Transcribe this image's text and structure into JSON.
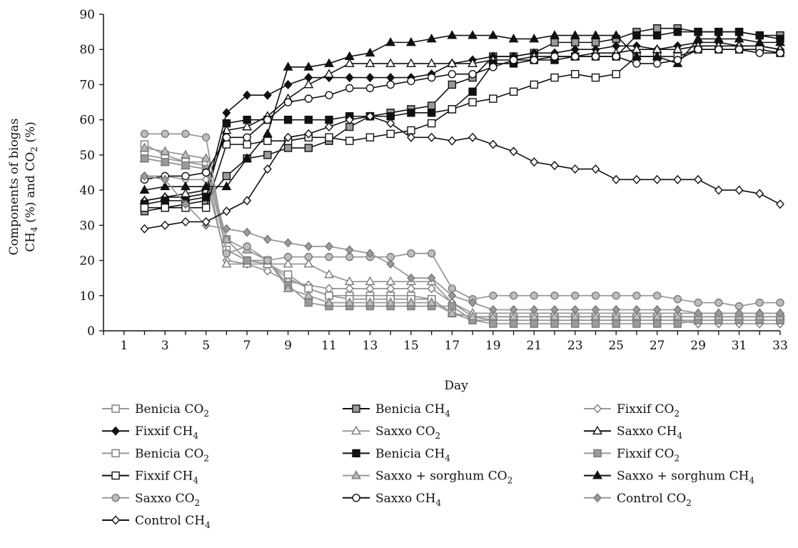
{
  "chart_data": {
    "type": "line",
    "title": "",
    "xlabel": "Day",
    "ylabel_line1": "Components of biogas",
    "ylabel_line2_parts": [
      "CH",
      "4",
      " (%)  and  CO",
      "2",
      " (%)"
    ],
    "xlim": [
      0,
      33
    ],
    "ylim": [
      0,
      90
    ],
    "xticks": [
      1,
      3,
      5,
      7,
      9,
      11,
      13,
      15,
      17,
      19,
      21,
      23,
      25,
      27,
      29,
      31,
      33
    ],
    "yticks": [
      0,
      10,
      20,
      30,
      40,
      50,
      60,
      70,
      80,
      90
    ],
    "grid": false,
    "legend_position": "bottom",
    "x": [
      2,
      3,
      4,
      5,
      6,
      7,
      8,
      9,
      10,
      11,
      12,
      13,
      14,
      15,
      16,
      17,
      18,
      19,
      20,
      21,
      22,
      23,
      24,
      25,
      26,
      27,
      28,
      29,
      30,
      31,
      32,
      33
    ],
    "series": [
      {
        "label": "Benicia",
        "sub": "CO",
        "subscript": "2",
        "color": "#9a9a9a",
        "marker": "square",
        "fill": "#ffffff",
        "values": [
          53,
          50,
          48,
          47,
          23,
          20,
          19,
          15,
          12,
          10,
          10,
          10,
          10,
          10,
          9,
          5,
          4,
          4,
          4,
          4,
          4,
          4,
          4,
          4,
          4,
          4,
          4,
          4,
          4,
          4,
          4,
          4
        ]
      },
      {
        "label": "Benicia",
        "sub": "CH",
        "subscript": "4",
        "color": "#111111",
        "marker": "square",
        "fill": "#9a9a9a",
        "values": [
          34,
          35,
          36,
          37,
          44,
          49,
          50,
          52,
          52,
          54,
          58,
          61,
          62,
          63,
          64,
          70,
          72,
          78,
          78,
          79,
          82,
          82,
          82,
          83,
          85,
          86,
          86,
          85,
          85,
          85,
          84,
          84
        ]
      },
      {
        "label": "Fixxif",
        "sub": "CO",
        "subscript": "2",
        "color": "#9a9a9a",
        "marker": "diamond",
        "fill": "#ffffff",
        "values": [
          44,
          44,
          43,
          43,
          20,
          19,
          17,
          14,
          13,
          12,
          12,
          12,
          12,
          12,
          12,
          8,
          4,
          3,
          3,
          3,
          3,
          3,
          3,
          3,
          3,
          3,
          3,
          2,
          2,
          2,
          2,
          2
        ]
      },
      {
        "label": "Fixxif",
        "sub": "CH",
        "subscript": "4",
        "color": "#111111",
        "marker": "diamond",
        "fill": "#111111",
        "values": [
          37,
          38,
          38,
          39,
          62,
          67,
          67,
          70,
          72,
          72,
          72,
          72,
          72,
          72,
          73,
          76,
          77,
          78,
          78,
          79,
          79,
          80,
          80,
          81,
          81,
          80,
          81,
          82,
          82,
          81,
          81,
          80
        ]
      },
      {
        "label": "Saxxo",
        "sub": "CO",
        "subscript": "2",
        "color": "#9a9a9a",
        "marker": "triangle",
        "fill": "#ffffff",
        "values": [
          49,
          48,
          47,
          46,
          19,
          19,
          19,
          19,
          19,
          16,
          14,
          14,
          14,
          14,
          14,
          8,
          5,
          5,
          5,
          5,
          5,
          5,
          5,
          5,
          5,
          5,
          5,
          5,
          5,
          5,
          5,
          5
        ]
      },
      {
        "label": "Saxxo",
        "sub": "CH",
        "subscript": "4",
        "color": "#111111",
        "marker": "triangle",
        "fill": "#ffffff",
        "values": [
          37,
          38,
          39,
          40,
          57,
          58,
          61,
          66,
          70,
          73,
          76,
          76,
          76,
          76,
          76,
          76,
          76,
          77,
          77,
          78,
          78,
          78,
          79,
          79,
          80,
          80,
          80,
          81,
          81,
          81,
          81,
          80
        ]
      },
      {
        "label": "Benicia",
        "sub": "CO",
        "subscript": "2",
        "color": "#9a9a9a",
        "marker": "square",
        "fill": "#ffffff",
        "values": [
          50,
          49,
          48,
          48,
          23,
          20,
          19,
          16,
          12,
          10,
          9,
          9,
          9,
          9,
          9,
          5,
          3,
          3,
          3,
          3,
          3,
          3,
          3,
          3,
          3,
          3,
          3,
          3,
          3,
          3,
          3,
          3
        ]
      },
      {
        "label": "Benicia",
        "sub": "CH",
        "subscript": "4",
        "color": "#111111",
        "marker": "square",
        "fill": "#111111",
        "values": [
          36,
          37,
          37,
          38,
          59,
          60,
          60,
          60,
          60,
          60,
          61,
          61,
          61,
          62,
          62,
          63,
          68,
          76,
          76,
          77,
          77,
          78,
          78,
          78,
          84,
          84,
          85,
          85,
          85,
          85,
          84,
          83
        ]
      },
      {
        "label": "Fixxif",
        "sub": "CO",
        "subscript": "2",
        "color": "#9a9a9a",
        "marker": "square",
        "fill": "#9a9a9a",
        "values": [
          49,
          48,
          47,
          46,
          26,
          20,
          20,
          13,
          8,
          7,
          7,
          7,
          7,
          7,
          7,
          7,
          3,
          2,
          2,
          2,
          2,
          2,
          2,
          2,
          2,
          2,
          2,
          3,
          3,
          3,
          3,
          3
        ]
      },
      {
        "label": "Fixxif",
        "sub": "CH",
        "subscript": "4",
        "color": "#111111",
        "marker": "square",
        "fill": "#ffffff",
        "values": [
          35,
          35,
          35,
          35,
          53,
          53,
          54,
          54,
          55,
          55,
          54,
          55,
          56,
          57,
          59,
          63,
          65,
          66,
          68,
          70,
          72,
          73,
          72,
          73,
          78,
          78,
          78,
          80,
          80,
          80,
          80,
          79
        ]
      },
      {
        "label": "Saxxo + sorghum",
        "sub": "CO",
        "subscript": "2",
        "color": "#9a9a9a",
        "marker": "triangle",
        "fill": "#bdbdbd",
        "values": [
          52,
          51,
          50,
          49,
          26,
          23,
          20,
          12,
          10,
          8,
          8,
          8,
          8,
          8,
          8,
          5,
          4,
          4,
          4,
          4,
          4,
          4,
          4,
          4,
          4,
          4,
          4,
          4,
          4,
          4,
          4,
          4
        ]
      },
      {
        "label": "Saxxo + sorghum",
        "sub": "CH",
        "subscript": "4",
        "color": "#111111",
        "marker": "triangle",
        "fill": "#111111",
        "values": [
          40,
          41,
          41,
          41,
          41,
          49,
          56,
          75,
          75,
          76,
          78,
          79,
          82,
          82,
          83,
          84,
          84,
          84,
          83,
          83,
          84,
          84,
          84,
          84,
          78,
          78,
          76,
          83,
          83,
          83,
          82,
          82
        ]
      },
      {
        "label": "Saxxo",
        "sub": "CO",
        "subscript": "2",
        "color": "#9a9a9a",
        "marker": "circle",
        "fill": "#bdbdbd",
        "values": [
          56,
          56,
          56,
          55,
          22,
          24,
          20,
          21,
          21,
          21,
          21,
          21,
          21,
          22,
          22,
          12,
          9,
          10,
          10,
          10,
          10,
          10,
          10,
          10,
          10,
          10,
          9,
          8,
          8,
          7,
          8,
          8
        ]
      },
      {
        "label": "Saxxo",
        "sub": "CH",
        "subscript": "4",
        "color": "#111111",
        "marker": "circle",
        "fill": "#ffffff",
        "values": [
          43,
          44,
          44,
          45,
          55,
          55,
          60,
          65,
          66,
          67,
          69,
          69,
          70,
          71,
          72,
          73,
          73,
          75,
          77,
          77,
          78,
          78,
          78,
          78,
          76,
          76,
          77,
          80,
          80,
          80,
          79,
          79
        ]
      },
      {
        "label": "Control",
        "sub": "CO",
        "subscript": "2",
        "color": "#9a9a9a",
        "marker": "diamond",
        "fill": "#9a9a9a",
        "values": [
          44,
          43,
          36,
          30,
          29,
          28,
          26,
          25,
          24,
          24,
          23,
          22,
          19,
          15,
          15,
          10,
          8,
          6,
          6,
          6,
          6,
          6,
          6,
          6,
          6,
          6,
          6,
          5,
          5,
          5,
          5,
          5
        ]
      },
      {
        "label": "Control",
        "sub": "CH",
        "subscript": "4",
        "color": "#111111",
        "marker": "diamond",
        "fill": "#ffffff",
        "values": [
          29,
          30,
          31,
          31,
          34,
          37,
          46,
          55,
          56,
          58,
          60,
          61,
          59,
          55,
          55,
          54,
          55,
          53,
          51,
          48,
          47,
          46,
          46,
          43,
          43,
          43,
          43,
          43,
          40,
          40,
          39,
          36
        ]
      }
    ]
  }
}
